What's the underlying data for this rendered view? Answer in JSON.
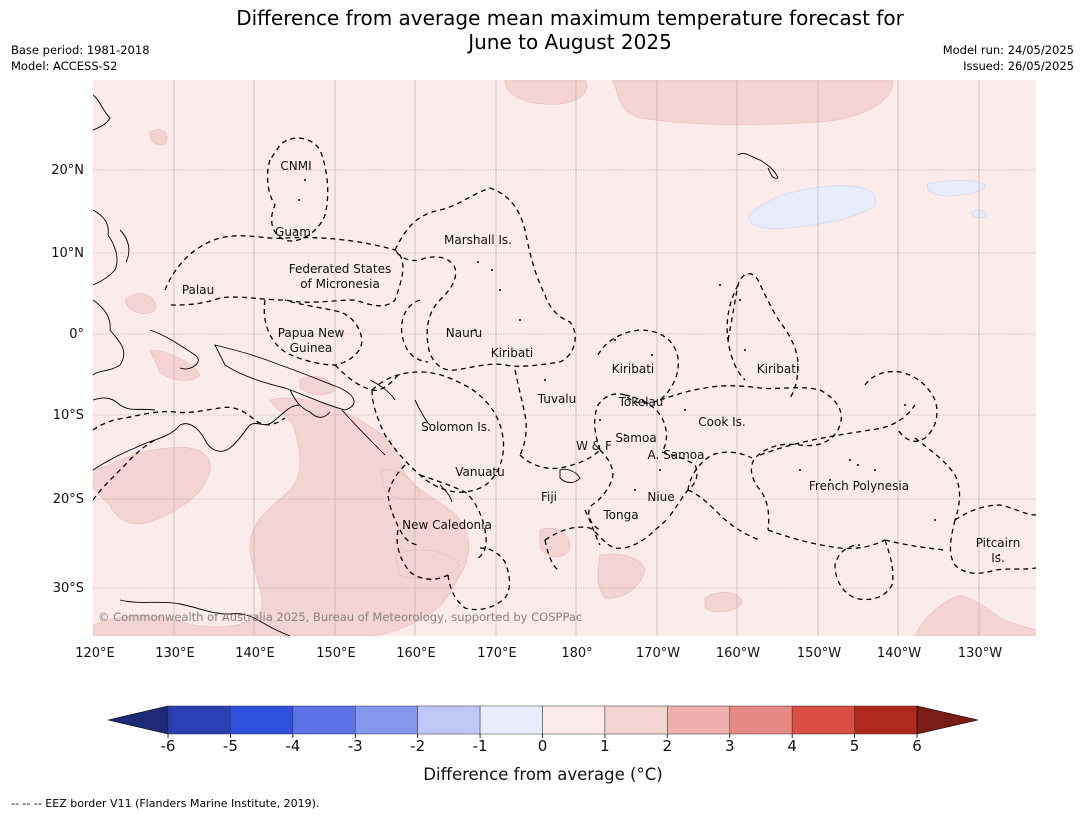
{
  "title": {
    "line1": "Difference from average mean maximum temperature forecast for",
    "line2": "June to August 2025"
  },
  "meta_left": {
    "base_period": "Base period: 1981-2018",
    "model": "Model: ACCESS-S2"
  },
  "meta_right": {
    "model_run": "Model run: 24/05/2025",
    "issued": "Issued: 26/05/2025"
  },
  "map": {
    "lat_labels": [
      "20°N",
      "10°N",
      "0°",
      "10°S",
      "20°S",
      "30°S"
    ],
    "lon_labels": [
      "120°E",
      "130°E",
      "140°E",
      "150°E",
      "160°E",
      "170°E",
      "180°",
      "170°W",
      "160°W",
      "150°W",
      "140°W",
      "130°W"
    ],
    "regions": {
      "cnmi": "CNMI",
      "guam": "Guam",
      "marshall": "Marshall Is.",
      "fsm_1": "Federated States",
      "fsm_2": "of Micronesia",
      "palau": "Palau",
      "png_1": "Papua New",
      "png_2": "Guinea",
      "nauru": "Nauru",
      "kiribati_w": "Kiribati",
      "kiribati_c": "Kiribati",
      "kiribati_e": "Kiribati",
      "tuvalu": "Tuvalu",
      "tokelau": "Tokelau",
      "cook": "Cook Is.",
      "solomon": "Solomon Is.",
      "wf": "W & F",
      "samoa": "Samoa",
      "asamoa": "A. Samoa",
      "vanuatu": "Vanuatu",
      "fiji": "Fiji",
      "niue": "Niue",
      "tonga": "Tonga",
      "french_polynesia": "French Polynesia",
      "new_caledonia": "New Caledonia",
      "pitcairn_1": "Pitcairn",
      "pitcairn_2": "Is."
    },
    "copyright": "© Commonwealth of Australia 2025, Bureau of Meteorology, supported by COSPPac"
  },
  "colorbar": {
    "label": "Difference from average (°C)",
    "ticks": [
      "-6",
      "-5",
      "-4",
      "-3",
      "-2",
      "-1",
      "0",
      "1",
      "2",
      "3",
      "4",
      "5",
      "6"
    ],
    "colors": {
      "under": "#1c2a78",
      "bins": [
        "#2a3fb4",
        "#3050de",
        "#5a72e6",
        "#8597ec",
        "#bfc8f4",
        "#e8ecfb",
        "#fbeceb",
        "#f4d4d2",
        "#eeb0ac",
        "#e78883",
        "#db4e45",
        "#b0291f"
      ],
      "over": "#7a1c16"
    }
  },
  "footer": "--  --  -- EEZ border V11 (Flanders Marine Institute, 2019)."
}
